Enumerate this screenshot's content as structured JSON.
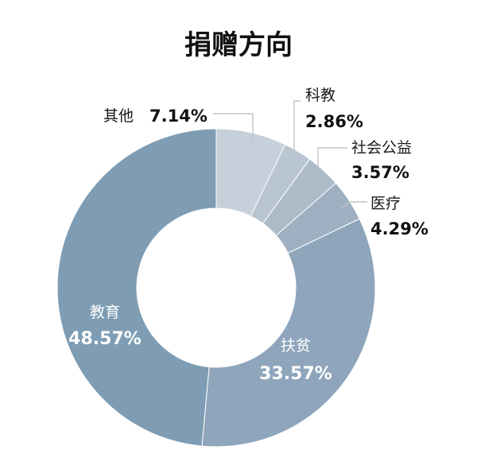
{
  "chart_data": {
    "type": "pie",
    "title": "捐赠方向",
    "donut": true,
    "start": "12 o'clock, clockwise",
    "slices": [
      {
        "label": "其他",
        "value": 7.14,
        "display": "7.14%",
        "color": "#c5d0da"
      },
      {
        "label": "科教",
        "value": 2.86,
        "display": "2.86%",
        "color": "#b9c5d1"
      },
      {
        "label": "社会公益",
        "value": 3.57,
        "display": "3.57%",
        "color": "#adbbc9"
      },
      {
        "label": "医疗",
        "value": 4.29,
        "display": "4.29%",
        "color": "#9fb0c2"
      },
      {
        "label": "扶贫",
        "value": 33.57,
        "display": "33.57%",
        "color": "#8ea5bb"
      },
      {
        "label": "教育",
        "value": 48.57,
        "display": "48.57%",
        "color": "#7e9db4"
      }
    ]
  }
}
